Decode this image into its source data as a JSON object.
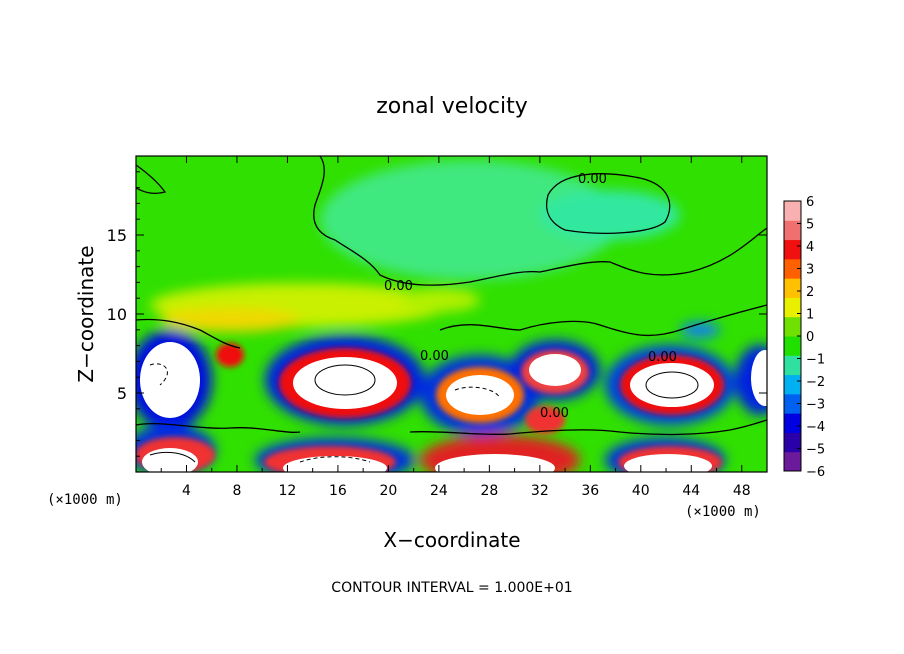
{
  "chart_data": {
    "type": "heatmap",
    "title": "zonal velocity",
    "xlabel": "X−coordinate",
    "ylabel": "Z−coordinate",
    "x_unit": "(×1000 m)",
    "y_unit": "(×1000 m)",
    "xlim": [
      0,
      50
    ],
    "ylim": [
      0,
      20
    ],
    "x_ticks": [
      "4",
      "8",
      "12",
      "16",
      "20",
      "24",
      "28",
      "32",
      "36",
      "40",
      "44",
      "48"
    ],
    "y_ticks": [
      "5",
      "10",
      "15"
    ],
    "colorbar": {
      "min": -6,
      "max": 6,
      "ticks": [
        "6",
        "5",
        "4",
        "3",
        "2",
        "1",
        "0",
        "−1",
        "−2",
        "−3",
        "−4",
        "−5",
        "−6"
      ],
      "colors": [
        "#6a1a9a",
        "#2a00a8",
        "#0000e0",
        "#0060f0",
        "#00b0f0",
        "#30e0a0",
        "#20e000",
        "#70e000",
        "#e8f000",
        "#ffc000",
        "#ff6000",
        "#f01010",
        "#f07070",
        "#f8b0b0"
      ]
    },
    "contour_labels": [
      "0.00",
      "0.00",
      "0.00",
      "0.00",
      "0.00"
    ],
    "footer": "CONTOUR INTERVAL = 1.000E+01"
  }
}
